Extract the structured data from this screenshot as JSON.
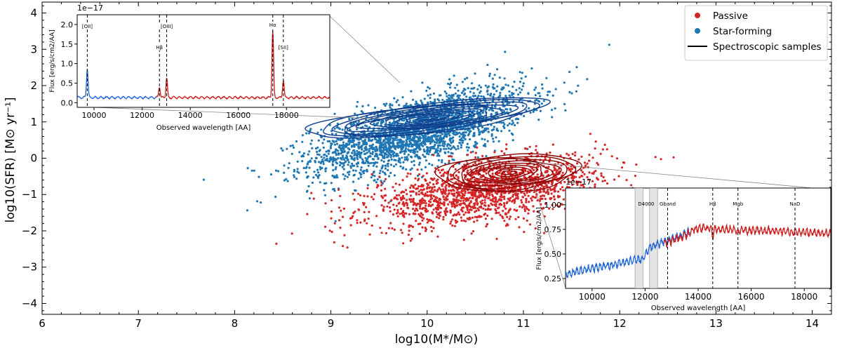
{
  "chart_data": [
    {
      "type": "scatter",
      "title": "",
      "xlabel": "log10(M*/M⊙)",
      "ylabel": "log10(SFR) [M⊙ yr⁻¹]",
      "xlim": [
        6.0,
        14.2
      ],
      "ylim": [
        -4.3,
        4.3
      ],
      "xticks": [
        "6",
        "7",
        "8",
        "9",
        "10",
        "11",
        "12",
        "13",
        "14"
      ],
      "yticks": [
        "−4",
        "−3",
        "−2",
        "−1",
        "0",
        "1",
        "2",
        "3",
        "4"
      ],
      "grid": false,
      "legend_position": "top-right",
      "legend": [
        {
          "label": "Passive",
          "marker": "dot",
          "color": "#d62728"
        },
        {
          "label": "Star-forming",
          "marker": "dot",
          "color": "#1f77b4"
        },
        {
          "label": "Spectroscopic samples",
          "marker": "line",
          "color": "#000000"
        }
      ],
      "series": [
        {
          "name": "Star-forming",
          "color": "#1f77b4",
          "center": [
            9.9,
            0.75
          ],
          "spread": [
            0.55,
            0.45
          ],
          "slope": 0.7,
          "count": 2600
        },
        {
          "name": "Passive",
          "color": "#d62728",
          "center": [
            10.6,
            -0.9
          ],
          "spread": [
            0.6,
            0.4
          ],
          "slope": 0.4,
          "count": 1700
        }
      ],
      "contours": [
        {
          "name": "Star-forming",
          "color": "#0d3d8c",
          "center": [
            10.0,
            1.1
          ],
          "semi_axes": [
            1.3,
            0.38
          ],
          "angle_deg": 19,
          "levels": 11
        },
        {
          "name": "Passive",
          "color": "#8b0000",
          "center": [
            10.85,
            -0.4
          ],
          "semi_axes": [
            0.75,
            0.5
          ],
          "angle_deg": 14,
          "levels": 10
        }
      ]
    },
    {
      "type": "line",
      "title": "",
      "exponent_label": "1e−17",
      "xlabel": "Observed wavelength [AA]",
      "ylabel": "Flux [erg/s/cm2/AA]",
      "xlim": [
        9300,
        19800
      ],
      "ylim": [
        -0.12,
        2.25
      ],
      "xticks": [
        10000,
        12000,
        14000,
        16000,
        18000
      ],
      "yticks": [
        "0.0",
        "0.5",
        "1.0",
        "1.5",
        "2.0"
      ],
      "blue_to_red_at": 12600,
      "lines": [
        {
          "label": "[OII]",
          "x": 9720,
          "height": 0.75
        },
        {
          "label": "Hβ",
          "x": 12720,
          "height": 0.28
        },
        {
          "label": "[OIII]",
          "x": 13020,
          "height": 0.5
        },
        {
          "label": "Hα",
          "x": 17430,
          "height": 1.72
        },
        {
          "label": "[SII]",
          "x": 17870,
          "height": 0.45
        }
      ],
      "continuum": 0.13
    },
    {
      "type": "line",
      "title": "",
      "exponent_label": "1e−17",
      "xlabel": "Observed wavelength [AA]",
      "ylabel": "Flux [erg/s/cm2/AA]",
      "xlim": [
        9000,
        19000
      ],
      "ylim": [
        0.15,
        1.17
      ],
      "xticks": [
        10000,
        12000,
        14000,
        16000,
        18000
      ],
      "yticks": [
        "0.25",
        "0.50",
        "0.75",
        "1.00"
      ],
      "blue_end": 13700,
      "red_start": 12700,
      "bands": [
        [
          11620,
          11920
        ],
        [
          12170,
          12470
        ]
      ],
      "features": [
        {
          "label": "D4000",
          "x": 12040
        },
        {
          "label": "Gband",
          "x": 12850
        },
        {
          "label": "Hβ",
          "x": 14550
        },
        {
          "label": "Mgb",
          "x": 15500
        },
        {
          "label": "NaD",
          "x": 17650
        }
      ]
    }
  ]
}
